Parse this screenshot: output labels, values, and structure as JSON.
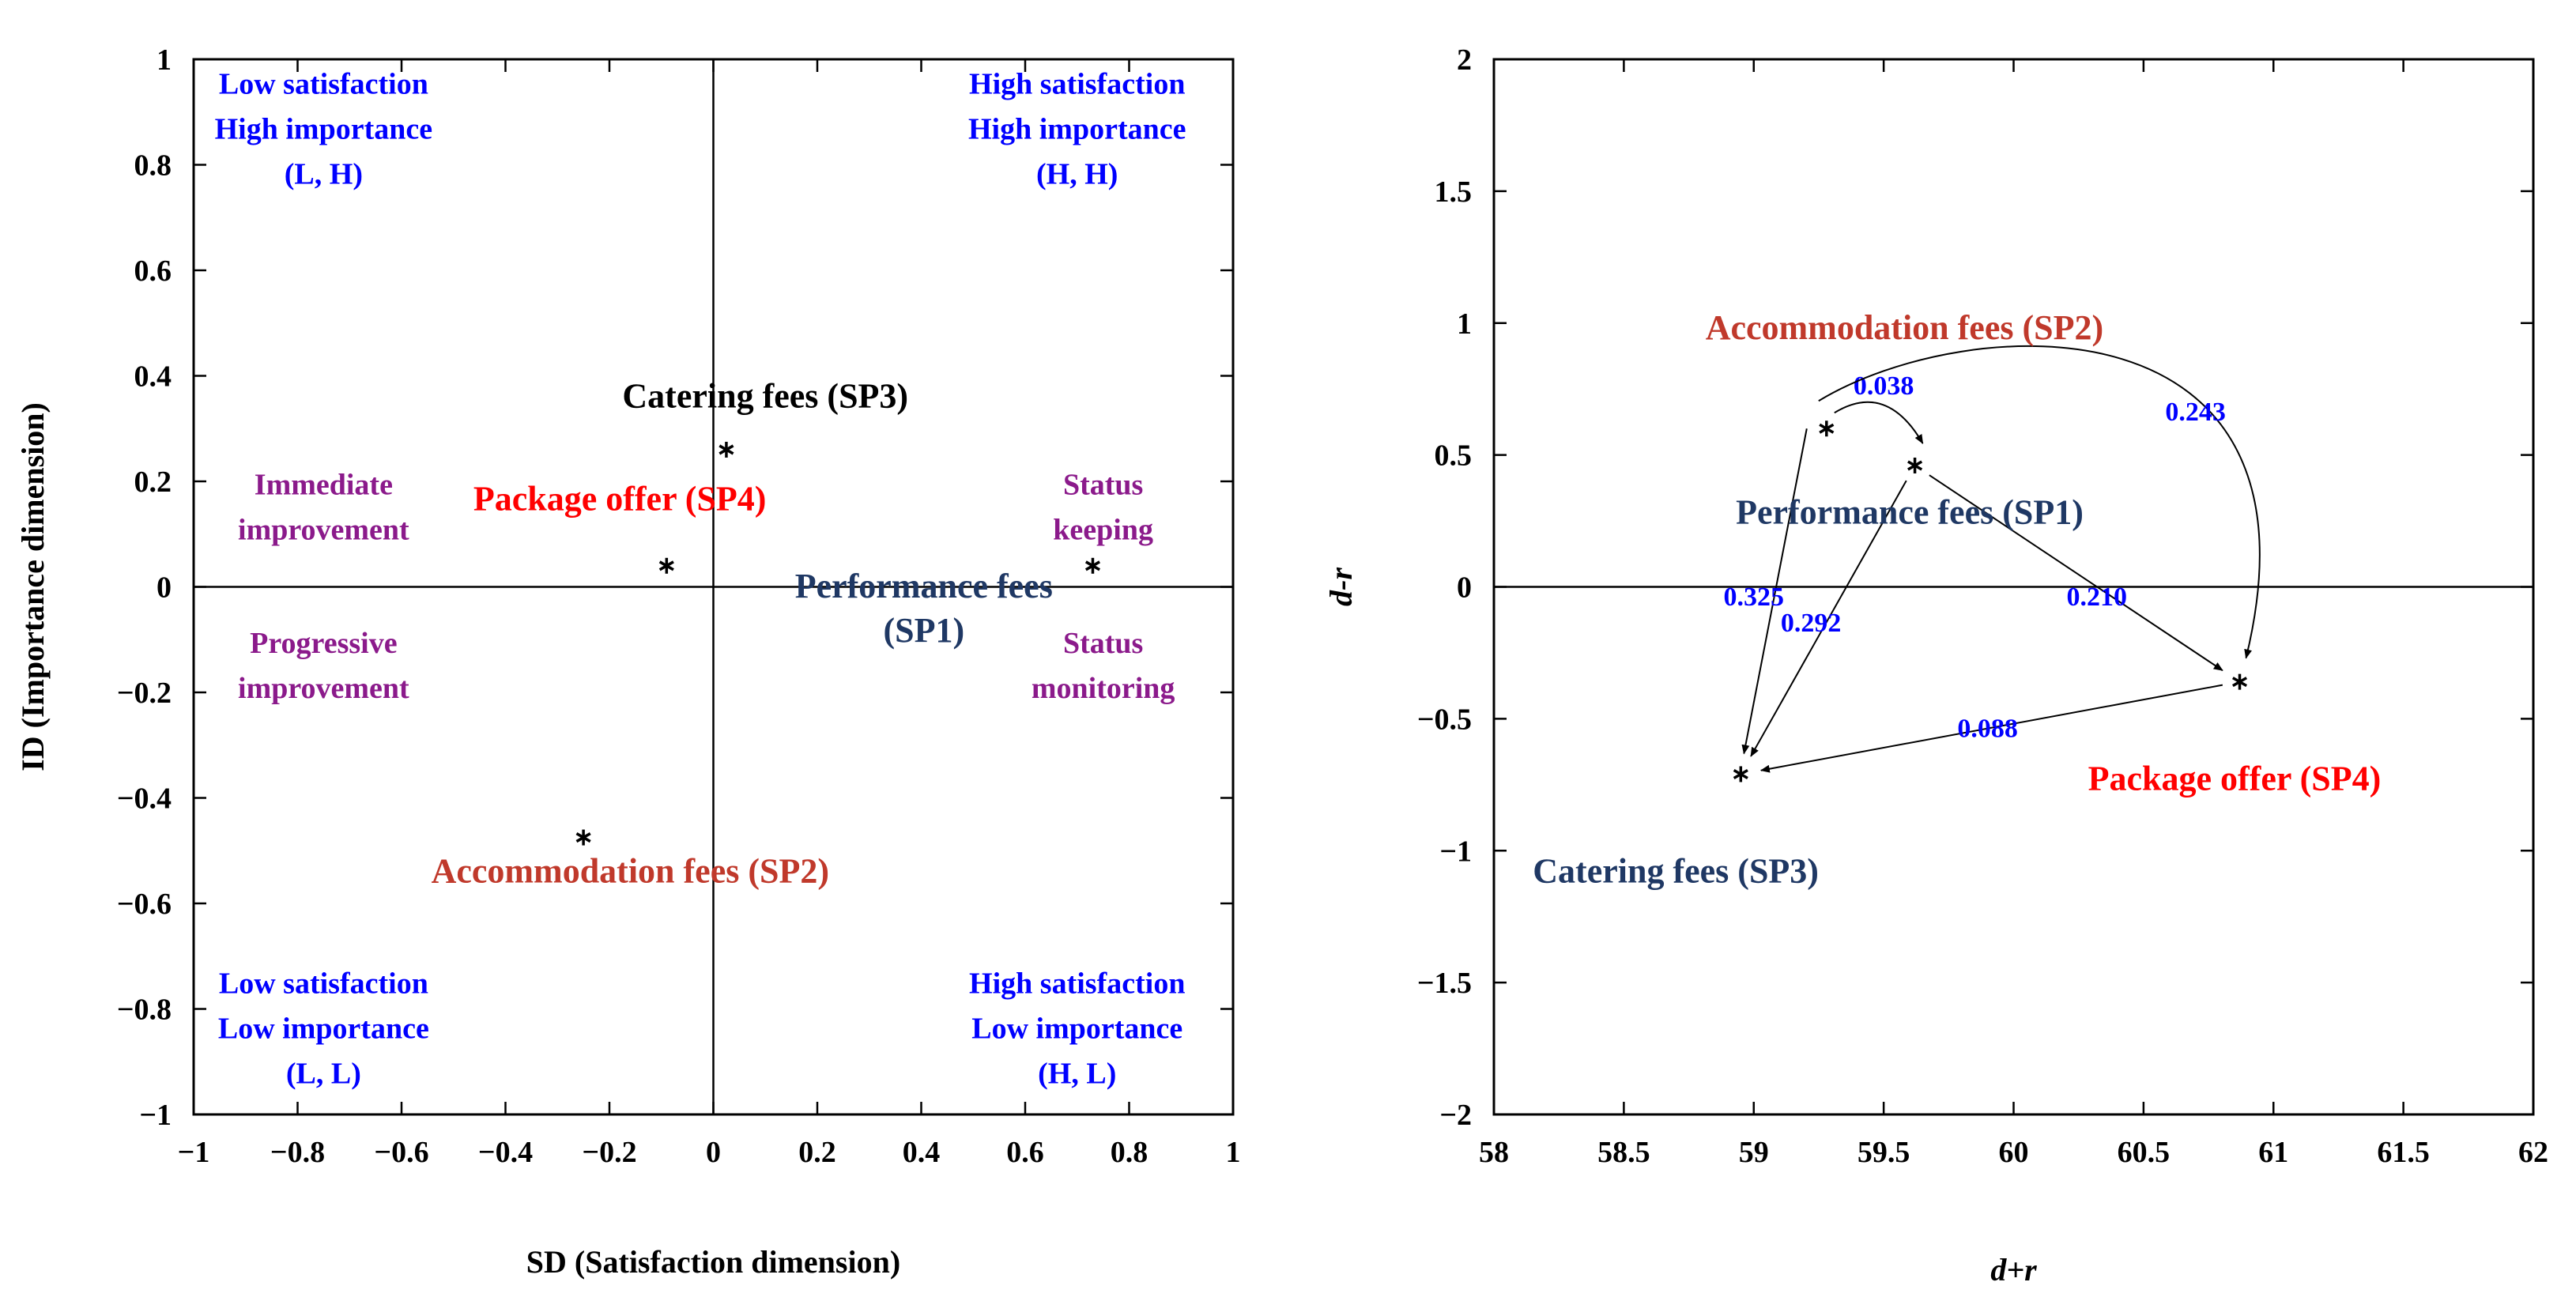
{
  "chart_data": [
    {
      "type": "scatter",
      "xlabel": "SD (Satisfaction dimension)",
      "ylabel": "ID (Importance dimension)",
      "xlim": [
        -1,
        1
      ],
      "ylim": [
        -1,
        1
      ],
      "x_ticks": [
        -1,
        -0.8,
        -0.6,
        -0.4,
        -0.2,
        0,
        0.2,
        0.4,
        0.6,
        0.8,
        1
      ],
      "x_tick_labels": [
        "−1",
        "−0.8",
        "−0.6",
        "−0.4",
        "−0.2",
        "0",
        "0.2",
        "0.4",
        "0.6",
        "0.8",
        "1"
      ],
      "y_ticks": [
        -1,
        -0.8,
        -0.6,
        -0.4,
        -0.2,
        0,
        0.2,
        0.4,
        0.6,
        0.8,
        1
      ],
      "y_tick_labels": [
        "−1",
        "−0.8",
        "−0.6",
        "−0.4",
        "−0.2",
        "0",
        "0.2",
        "0.4",
        "0.6",
        "0.8",
        "1"
      ],
      "grid": false,
      "reference_lines": {
        "x": 0,
        "y": 0
      },
      "points": [
        {
          "id": "SP1",
          "x": 0.73,
          "y": 0.04
        },
        {
          "id": "SP2",
          "x": -0.25,
          "y": -0.475
        },
        {
          "id": "SP3",
          "x": 0.025,
          "y": 0.26
        },
        {
          "id": "SP4",
          "x": -0.09,
          "y": 0.04
        }
      ],
      "labels": [
        {
          "name": "label-sp3",
          "lines": [
            "Catering fees (SP3)"
          ],
          "x": 0.1,
          "y": 0.34,
          "color": "#000000",
          "size": "large"
        },
        {
          "name": "label-sp4",
          "lines": [
            "Package offer (SP4)"
          ],
          "x": -0.18,
          "y": 0.145,
          "color": "#ff0000",
          "size": "large"
        },
        {
          "name": "label-sp1",
          "lines": [
            "Performance fees",
            "(SP1)"
          ],
          "x": 0.405,
          "y": -0.02,
          "color": "#1f3864",
          "size": "large"
        },
        {
          "name": "label-sp2",
          "lines": [
            "Accommodation fees (SP2)"
          ],
          "x": -0.16,
          "y": -0.56,
          "color": "#c0392b",
          "size": "large"
        },
        {
          "name": "quadrant-top-left",
          "lines": [
            "Low satisfaction",
            "High importance",
            "(L, H)"
          ],
          "x": -0.75,
          "y": 0.935,
          "color": "#0000ff",
          "size": "small"
        },
        {
          "name": "quadrant-top-right",
          "lines": [
            "High satisfaction",
            "High importance",
            "(H, H)"
          ],
          "x": 0.7,
          "y": 0.935,
          "color": "#0000ff",
          "size": "small"
        },
        {
          "name": "quadrant-bottom-left",
          "lines": [
            "Low satisfaction",
            "Low importance",
            "(L, L)"
          ],
          "x": -0.75,
          "y": -0.77,
          "color": "#0000ff",
          "size": "small"
        },
        {
          "name": "quadrant-bottom-right",
          "lines": [
            "High satisfaction",
            "Low importance",
            "(H, L)"
          ],
          "x": 0.7,
          "y": -0.77,
          "color": "#0000ff",
          "size": "small"
        },
        {
          "name": "zone-immediate",
          "lines": [
            "Immediate",
            "improvement"
          ],
          "x": -0.75,
          "y": 0.175,
          "color": "#8b1a8b",
          "size": "small"
        },
        {
          "name": "zone-status-keeping",
          "lines": [
            "Status",
            "keeping"
          ],
          "x": 0.75,
          "y": 0.175,
          "color": "#8b1a8b",
          "size": "small"
        },
        {
          "name": "zone-progressive",
          "lines": [
            "Progressive",
            "improvement"
          ],
          "x": -0.75,
          "y": -0.125,
          "color": "#8b1a8b",
          "size": "small"
        },
        {
          "name": "zone-status-monitoring",
          "lines": [
            "Status",
            "monitoring"
          ],
          "x": 0.75,
          "y": -0.125,
          "color": "#8b1a8b",
          "size": "small"
        }
      ]
    },
    {
      "type": "scatter",
      "xlabel": "d+r",
      "ylabel": "d-r",
      "xlim": [
        58,
        62
      ],
      "ylim": [
        -2,
        2
      ],
      "x_ticks": [
        58,
        58.5,
        59,
        59.5,
        60,
        60.5,
        61,
        61.5,
        62
      ],
      "x_tick_labels": [
        "58",
        "58.5",
        "59",
        "59.5",
        "60",
        "60.5",
        "61",
        "61.5",
        "62"
      ],
      "y_ticks": [
        -2,
        -1.5,
        -1,
        -0.5,
        0,
        0.5,
        1,
        1.5,
        2
      ],
      "y_tick_labels": [
        "−2",
        "−1.5",
        "−1",
        "−0.5",
        "0",
        "0.5",
        "1",
        "1.5",
        "2"
      ],
      "grid": false,
      "reference_lines": {
        "y": 0
      },
      "points": [
        {
          "id": "SP1",
          "x": 59.62,
          "y": 0.46
        },
        {
          "id": "SP2",
          "x": 59.28,
          "y": 0.6
        },
        {
          "id": "SP3",
          "x": 58.95,
          "y": -0.71
        },
        {
          "id": "SP4",
          "x": 60.87,
          "y": -0.36
        }
      ],
      "labels": [
        {
          "name": "label-sp2",
          "lines": [
            "Accommodation fees (SP2)"
          ],
          "x": 59.58,
          "y": 0.94,
          "color": "#c0392b",
          "size": "large"
        },
        {
          "name": "label-sp1",
          "lines": [
            "Performance fees (SP1)"
          ],
          "x": 59.6,
          "y": 0.24,
          "color": "#1f3864",
          "size": "large"
        },
        {
          "name": "label-sp4",
          "lines": [
            "Package offer (SP4)"
          ],
          "x": 60.85,
          "y": -0.77,
          "color": "#ff0000",
          "size": "large"
        },
        {
          "name": "label-sp3",
          "lines": [
            "Catering fees (SP3)"
          ],
          "x": 58.7,
          "y": -1.12,
          "color": "#1f3864",
          "size": "large"
        }
      ],
      "relations": [
        {
          "from": "SP2",
          "to": "SP1",
          "weight_label": "0.038",
          "label_x": 59.5,
          "label_y": 0.73
        },
        {
          "from": "SP2",
          "to": "SP4",
          "weight_label": "0.243",
          "label_x": 60.7,
          "label_y": 0.63
        },
        {
          "from": "SP2",
          "to": "SP3",
          "weight_label": "0.325",
          "label_x": 59.0,
          "label_y": -0.07
        },
        {
          "from": "SP1",
          "to": "SP3",
          "weight_label": "0.292",
          "label_x": 59.22,
          "label_y": -0.17
        },
        {
          "from": "SP1",
          "to": "SP4",
          "weight_label": "0.210",
          "label_x": 60.32,
          "label_y": -0.07
        },
        {
          "from": "SP4",
          "to": "SP3",
          "weight_label": "0.088",
          "label_x": 59.9,
          "label_y": -0.57
        }
      ]
    }
  ]
}
